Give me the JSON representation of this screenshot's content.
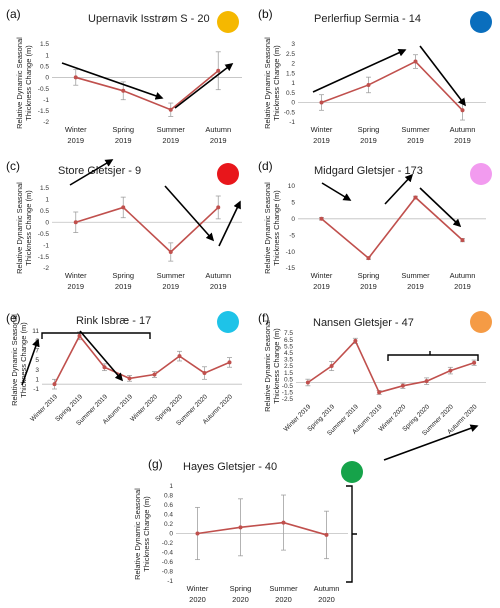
{
  "chart_data": [
    {
      "type": "line",
      "panel_label": "(a)",
      "title": "Upernavik Isstrøm S - 20",
      "dot_color": "#F5B800",
      "ylabel": "Relative Dynamic Seasonal Thickness Change (m)",
      "categories": [
        "Winter 2019",
        "Spring 2019",
        "Summer 2019",
        "Autumn 2019"
      ],
      "values": [
        0.0,
        -0.6,
        -1.45,
        0.3
      ],
      "errors": [
        0.35,
        0.4,
        0.3,
        0.85
      ],
      "ylim": [
        -2,
        1.5
      ],
      "yticks": [
        "1.5",
        "1",
        "0.5",
        "0",
        "-0.5",
        "-1",
        "-1.5",
        "-2"
      ]
    },
    {
      "type": "line",
      "panel_label": "(b)",
      "title": "Perlerfiup Sermia - 14",
      "dot_color": "#0A6EBD",
      "ylabel": "Relative Dynamic Seasonal Thickness Change (m)",
      "categories": [
        "Winter 2019",
        "Spring 2019",
        "Summer 2019",
        "Autumn 2019"
      ],
      "values": [
        0.0,
        0.9,
        2.1,
        -0.4
      ],
      "errors": [
        0.4,
        0.4,
        0.35,
        0.5
      ],
      "ylim": [
        -1,
        3
      ],
      "yticks": [
        "3",
        "2.5",
        "2",
        "1.5",
        "1",
        "0.5",
        "0",
        "-0.5",
        "-1"
      ]
    },
    {
      "type": "line",
      "panel_label": "(c)",
      "title": "Store Gletsjer  - 9",
      "dot_color": "#E8161B",
      "ylabel": "Relative Dynamic Seasonal Thickness Change (m)",
      "categories": [
        "Winter 2019",
        "Spring 2019",
        "Summer 2019",
        "Autumn 2019"
      ],
      "values": [
        0.0,
        0.65,
        -1.3,
        0.65
      ],
      "errors": [
        0.45,
        0.45,
        0.4,
        0.5
      ],
      "ylim": [
        -2,
        1.5
      ],
      "yticks": [
        "1.5",
        "1",
        "0.5",
        "0",
        "-0.5",
        "-1",
        "-1.5",
        "-2"
      ]
    },
    {
      "type": "line",
      "panel_label": "(d)",
      "title": "Midgard Gletsjer - 173",
      "dot_color": "#F29BEF",
      "ylabel": "Relative Dynamic Seasonal Thickness Change (m)",
      "categories": [
        "Winter 2019",
        "Spring 2019",
        "Summer 2019",
        "Autumn 2019"
      ],
      "values": [
        0.0,
        -12.0,
        6.5,
        -6.5
      ],
      "errors": [
        0.4,
        0.4,
        0.4,
        0.5
      ],
      "ylim": [
        -15,
        10
      ],
      "yticks": [
        "10",
        "5",
        "0",
        "-5",
        "-10",
        "-15"
      ]
    },
    {
      "type": "line",
      "panel_label": "(e)",
      "title": "Rink Isbræ - 17",
      "dot_color": "#1EC3E8",
      "ylabel": "Relative Dynamic Seasonal Thickness Change (m)",
      "categories": [
        "Winter 2019",
        "Spring 2019",
        "Summer 2019",
        "Autumn 2019",
        "Winter 2020",
        "Spring 2020",
        "Summer 2020",
        "Autumn 2020"
      ],
      "values": [
        0.0,
        10.0,
        3.5,
        1.2,
        2.0,
        5.8,
        2.3,
        4.5
      ],
      "errors": [
        1.0,
        0.8,
        0.7,
        0.6,
        0.6,
        1.0,
        1.3,
        1.0
      ],
      "ylim": [
        -1,
        11
      ],
      "yticks": [
        "11",
        "9",
        "7",
        "5",
        "3",
        "1",
        "-1"
      ]
    },
    {
      "type": "line",
      "panel_label": "(f)",
      "title": "Nansen Gletsjer - 47",
      "dot_color": "#F59B45",
      "ylabel": "Relative Dynamic Seasonal Thickness Change (m)",
      "categories": [
        "Winter 2019",
        "Spring 2019",
        "Summer 2019",
        "Autumn 2019",
        "Winter 2020",
        "Spring 2020",
        "Summer 2020",
        "Autumn 2020"
      ],
      "values": [
        0.0,
        2.5,
        6.3,
        -1.5,
        -0.5,
        0.2,
        1.8,
        3.0
      ],
      "errors": [
        0.5,
        0.7,
        0.4,
        0.3,
        0.4,
        0.5,
        0.5,
        0.4
      ],
      "ylim": [
        -2.5,
        7.5
      ],
      "yticks": [
        "7.5",
        "6.5",
        "5.5",
        "4.5",
        "3.5",
        "2.5",
        "1.5",
        "0.5",
        "-0.5",
        "-1.5",
        "-2.5"
      ]
    },
    {
      "type": "line",
      "panel_label": "(g)",
      "title": "Hayes Gletsjer - 40",
      "dot_color": "#16A34A",
      "ylabel": "Relative Dynamic Seasonal Thickness Change (m)",
      "categories": [
        "Winter 2020",
        "Spring 2020",
        "Summer 2020",
        "Autumn 2020"
      ],
      "values": [
        0.0,
        0.13,
        0.23,
        -0.03
      ],
      "errors": [
        0.55,
        0.6,
        0.58,
        0.5
      ],
      "ylim": [
        -1,
        1
      ],
      "yticks": [
        "1",
        "0.8",
        "0.6",
        "0.4",
        "0.2",
        "0",
        "-0.2",
        "-0.4",
        "-0.6",
        "-0.8",
        "-1"
      ]
    }
  ],
  "style": {
    "line_color": "#C0504D",
    "error_color": "#A0A0A0",
    "arrow_color": "#000000",
    "axis_color": "#BFBFBF"
  }
}
